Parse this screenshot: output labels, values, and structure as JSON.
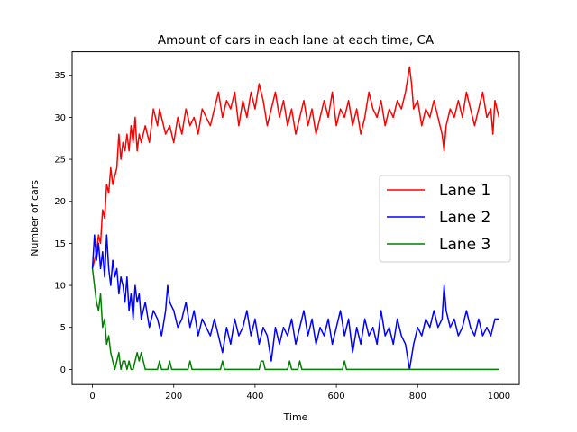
{
  "chart_data": {
    "type": "line",
    "title": "Amount of cars in each lane at each time, CA",
    "xlabel": "Time",
    "ylabel": "Number of cars",
    "xlim": [
      -50,
      1050
    ],
    "ylim": [
      -1.8,
      37.8
    ],
    "xticks": [
      0,
      200,
      400,
      600,
      800,
      1000
    ],
    "yticks": [
      0,
      5,
      10,
      15,
      20,
      25,
      30,
      35
    ],
    "grid": false,
    "legend": "center-right",
    "series": [
      {
        "name": "Lane 1",
        "color": "#ff0000",
        "points": [
          [
            0,
            12
          ],
          [
            10,
            14
          ],
          [
            15,
            16
          ],
          [
            20,
            15
          ],
          [
            25,
            19
          ],
          [
            30,
            18
          ],
          [
            35,
            22
          ],
          [
            40,
            21
          ],
          [
            45,
            24
          ],
          [
            50,
            22
          ],
          [
            55,
            23
          ],
          [
            60,
            24
          ],
          [
            65,
            28
          ],
          [
            70,
            25
          ],
          [
            75,
            27
          ],
          [
            80,
            26
          ],
          [
            85,
            28
          ],
          [
            90,
            26
          ],
          [
            95,
            29
          ],
          [
            100,
            27
          ],
          [
            105,
            30
          ],
          [
            110,
            26
          ],
          [
            115,
            28
          ],
          [
            120,
            27
          ],
          [
            130,
            29
          ],
          [
            140,
            27
          ],
          [
            150,
            31
          ],
          [
            160,
            29
          ],
          [
            165,
            31
          ],
          [
            170,
            30
          ],
          [
            180,
            28
          ],
          [
            190,
            29
          ],
          [
            200,
            27
          ],
          [
            210,
            30
          ],
          [
            220,
            28
          ],
          [
            230,
            31
          ],
          [
            240,
            29
          ],
          [
            250,
            30
          ],
          [
            260,
            28
          ],
          [
            270,
            31
          ],
          [
            280,
            30
          ],
          [
            290,
            29
          ],
          [
            300,
            31
          ],
          [
            310,
            33
          ],
          [
            320,
            30
          ],
          [
            330,
            32
          ],
          [
            340,
            31
          ],
          [
            350,
            33
          ],
          [
            360,
            29
          ],
          [
            370,
            32
          ],
          [
            380,
            30
          ],
          [
            390,
            33
          ],
          [
            400,
            31
          ],
          [
            410,
            34
          ],
          [
            420,
            32
          ],
          [
            430,
            29
          ],
          [
            440,
            31
          ],
          [
            450,
            33
          ],
          [
            460,
            30
          ],
          [
            470,
            32
          ],
          [
            480,
            29
          ],
          [
            490,
            31
          ],
          [
            500,
            28
          ],
          [
            510,
            30
          ],
          [
            520,
            32
          ],
          [
            530,
            29
          ],
          [
            540,
            31
          ],
          [
            550,
            28
          ],
          [
            560,
            30
          ],
          [
            570,
            32
          ],
          [
            580,
            30
          ],
          [
            590,
            33
          ],
          [
            600,
            29
          ],
          [
            610,
            31
          ],
          [
            620,
            30
          ],
          [
            630,
            32
          ],
          [
            640,
            29
          ],
          [
            650,
            31
          ],
          [
            660,
            28
          ],
          [
            670,
            30
          ],
          [
            680,
            33
          ],
          [
            690,
            31
          ],
          [
            700,
            30
          ],
          [
            710,
            32
          ],
          [
            720,
            29
          ],
          [
            730,
            31
          ],
          [
            740,
            30
          ],
          [
            750,
            32
          ],
          [
            760,
            31
          ],
          [
            770,
            33
          ],
          [
            780,
            36
          ],
          [
            785,
            34
          ],
          [
            790,
            31
          ],
          [
            800,
            32
          ],
          [
            810,
            29
          ],
          [
            820,
            31
          ],
          [
            830,
            30
          ],
          [
            840,
            32
          ],
          [
            850,
            30
          ],
          [
            860,
            28
          ],
          [
            865,
            26
          ],
          [
            870,
            29
          ],
          [
            880,
            31
          ],
          [
            890,
            30
          ],
          [
            900,
            32
          ],
          [
            910,
            30
          ],
          [
            920,
            33
          ],
          [
            930,
            31
          ],
          [
            940,
            29
          ],
          [
            950,
            31
          ],
          [
            960,
            33
          ],
          [
            970,
            30
          ],
          [
            980,
            31
          ],
          [
            985,
            28
          ],
          [
            990,
            32
          ],
          [
            1000,
            30
          ]
        ]
      },
      {
        "name": "Lane 2",
        "color": "#0000ff",
        "points": [
          [
            0,
            12
          ],
          [
            5,
            16
          ],
          [
            10,
            13
          ],
          [
            15,
            15
          ],
          [
            20,
            12
          ],
          [
            25,
            14
          ],
          [
            30,
            11
          ],
          [
            35,
            16
          ],
          [
            40,
            12
          ],
          [
            45,
            10
          ],
          [
            50,
            13
          ],
          [
            55,
            11
          ],
          [
            60,
            12
          ],
          [
            65,
            9
          ],
          [
            70,
            11
          ],
          [
            75,
            10
          ],
          [
            80,
            8
          ],
          [
            85,
            11
          ],
          [
            90,
            7
          ],
          [
            95,
            9
          ],
          [
            100,
            6
          ],
          [
            105,
            10
          ],
          [
            110,
            8
          ],
          [
            115,
            9
          ],
          [
            120,
            6
          ],
          [
            130,
            8
          ],
          [
            140,
            5
          ],
          [
            150,
            7
          ],
          [
            160,
            6
          ],
          [
            170,
            4
          ],
          [
            180,
            7
          ],
          [
            185,
            10
          ],
          [
            190,
            8
          ],
          [
            200,
            7
          ],
          [
            210,
            5
          ],
          [
            220,
            6
          ],
          [
            230,
            8
          ],
          [
            240,
            5
          ],
          [
            250,
            7
          ],
          [
            260,
            4
          ],
          [
            270,
            6
          ],
          [
            280,
            5
          ],
          [
            290,
            4
          ],
          [
            300,
            6
          ],
          [
            310,
            4
          ],
          [
            320,
            2
          ],
          [
            330,
            5
          ],
          [
            340,
            3
          ],
          [
            350,
            6
          ],
          [
            360,
            4
          ],
          [
            370,
            5
          ],
          [
            380,
            7
          ],
          [
            390,
            4
          ],
          [
            400,
            6
          ],
          [
            410,
            3
          ],
          [
            420,
            5
          ],
          [
            430,
            4
          ],
          [
            440,
            1
          ],
          [
            450,
            5
          ],
          [
            460,
            3
          ],
          [
            470,
            5
          ],
          [
            480,
            4
          ],
          [
            490,
            6
          ],
          [
            500,
            3
          ],
          [
            510,
            5
          ],
          [
            520,
            7
          ],
          [
            530,
            4
          ],
          [
            540,
            6
          ],
          [
            550,
            3
          ],
          [
            560,
            5
          ],
          [
            570,
            4
          ],
          [
            580,
            6
          ],
          [
            590,
            3
          ],
          [
            600,
            5
          ],
          [
            610,
            7
          ],
          [
            620,
            4
          ],
          [
            630,
            6
          ],
          [
            640,
            2
          ],
          [
            650,
            5
          ],
          [
            660,
            3
          ],
          [
            670,
            6
          ],
          [
            680,
            4
          ],
          [
            690,
            5
          ],
          [
            700,
            3
          ],
          [
            710,
            7
          ],
          [
            720,
            4
          ],
          [
            730,
            5
          ],
          [
            740,
            3
          ],
          [
            750,
            6
          ],
          [
            760,
            4
          ],
          [
            770,
            3
          ],
          [
            780,
            0
          ],
          [
            790,
            3
          ],
          [
            800,
            5
          ],
          [
            810,
            4
          ],
          [
            820,
            6
          ],
          [
            830,
            5
          ],
          [
            840,
            7
          ],
          [
            850,
            5
          ],
          [
            860,
            6
          ],
          [
            865,
            10
          ],
          [
            870,
            7
          ],
          [
            880,
            5
          ],
          [
            890,
            6
          ],
          [
            900,
            4
          ],
          [
            910,
            5
          ],
          [
            920,
            7
          ],
          [
            930,
            5
          ],
          [
            940,
            4
          ],
          [
            950,
            6
          ],
          [
            960,
            4
          ],
          [
            970,
            5
          ],
          [
            980,
            4
          ],
          [
            990,
            6
          ],
          [
            1000,
            6
          ]
        ]
      },
      {
        "name": "Lane 3",
        "color": "#008000",
        "points": [
          [
            0,
            12
          ],
          [
            5,
            10
          ],
          [
            10,
            8
          ],
          [
            15,
            7
          ],
          [
            20,
            9
          ],
          [
            25,
            5
          ],
          [
            30,
            6
          ],
          [
            35,
            3
          ],
          [
            40,
            4
          ],
          [
            45,
            2
          ],
          [
            50,
            1
          ],
          [
            55,
            0
          ],
          [
            60,
            1
          ],
          [
            65,
            2
          ],
          [
            70,
            0
          ],
          [
            75,
            1
          ],
          [
            80,
            1
          ],
          [
            85,
            0
          ],
          [
            90,
            1
          ],
          [
            95,
            0
          ],
          [
            100,
            0
          ],
          [
            105,
            1
          ],
          [
            110,
            2
          ],
          [
            115,
            1
          ],
          [
            120,
            2
          ],
          [
            125,
            1
          ],
          [
            130,
            0
          ],
          [
            160,
            0
          ],
          [
            165,
            1
          ],
          [
            170,
            0
          ],
          [
            185,
            0
          ],
          [
            190,
            1
          ],
          [
            195,
            0
          ],
          [
            235,
            0
          ],
          [
            240,
            1
          ],
          [
            245,
            0
          ],
          [
            315,
            0
          ],
          [
            320,
            1
          ],
          [
            325,
            0
          ],
          [
            410,
            0
          ],
          [
            415,
            1
          ],
          [
            420,
            1
          ],
          [
            425,
            0
          ],
          [
            480,
            0
          ],
          [
            485,
            1
          ],
          [
            490,
            0
          ],
          [
            505,
            0
          ],
          [
            510,
            1
          ],
          [
            515,
            0
          ],
          [
            615,
            0
          ],
          [
            620,
            1
          ],
          [
            625,
            0
          ],
          [
            1000,
            0
          ]
        ]
      }
    ]
  }
}
